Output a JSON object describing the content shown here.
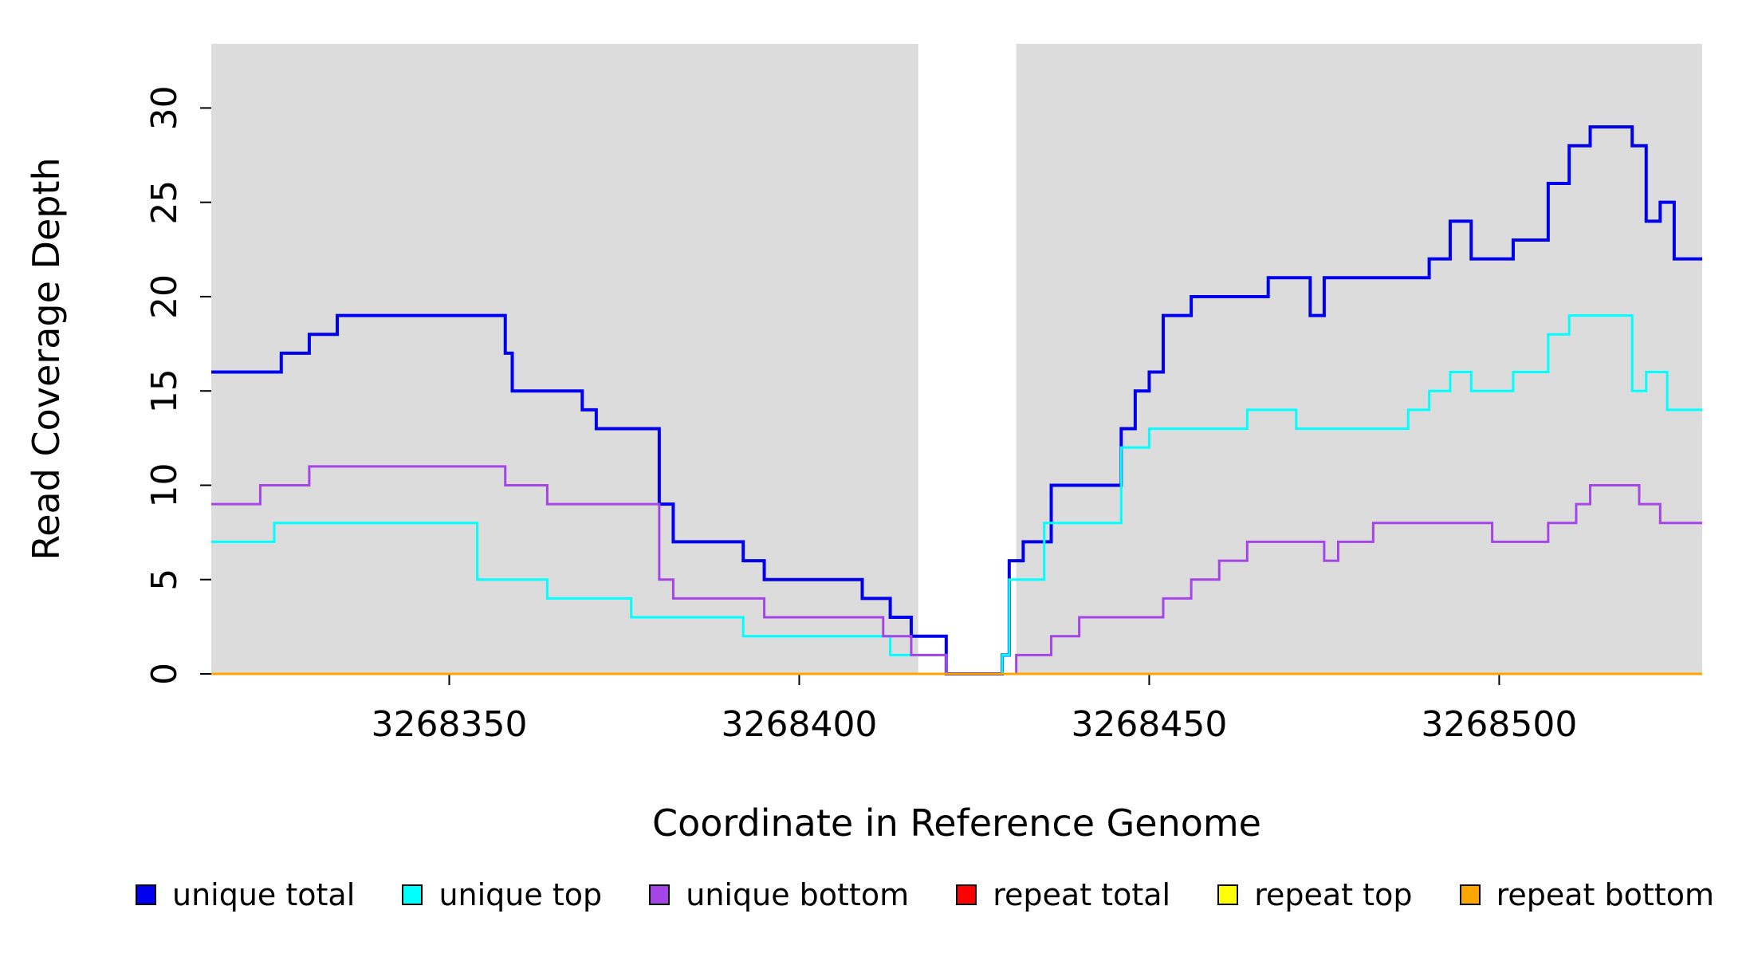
{
  "chart_data": {
    "type": "line",
    "subtype": "step-after-coverage",
    "title": "",
    "xlabel": "Coordinate in Reference Genome",
    "ylabel": "Read Coverage Depth",
    "xlim": [
      3268316,
      3268529
    ],
    "ylim": [
      0,
      33.4
    ],
    "x_ticks": [
      3268350,
      3268400,
      3268450,
      3268500
    ],
    "y_ticks": [
      0,
      5,
      10,
      15,
      20,
      25,
      30
    ],
    "grid": false,
    "legend_position": "bottom",
    "panel_background": "#ffffff",
    "shaded_regions": [
      {
        "x0": 3268316,
        "x1": 3268417,
        "color": "#DCDCDC"
      },
      {
        "x0": 3268431,
        "x1": 3268529,
        "color": "#DCDCDC"
      }
    ],
    "series": [
      {
        "name": "unique total",
        "color": "#0000EE",
        "width": 4,
        "points": [
          [
            3268316,
            16
          ],
          [
            3268326,
            17
          ],
          [
            3268330,
            18
          ],
          [
            3268334,
            19
          ],
          [
            3268358,
            17
          ],
          [
            3268359,
            15
          ],
          [
            3268369,
            14
          ],
          [
            3268371,
            13
          ],
          [
            3268380,
            9
          ],
          [
            3268382,
            7
          ],
          [
            3268392,
            6
          ],
          [
            3268395,
            5
          ],
          [
            3268409,
            4
          ],
          [
            3268413,
            3
          ],
          [
            3268416,
            2
          ],
          [
            3268421,
            0
          ],
          [
            3268429,
            1
          ],
          [
            3268430,
            6
          ],
          [
            3268432,
            7
          ],
          [
            3268436,
            10
          ],
          [
            3268446,
            13
          ],
          [
            3268448,
            15
          ],
          [
            3268450,
            16
          ],
          [
            3268452,
            19
          ],
          [
            3268456,
            20
          ],
          [
            3268467,
            21
          ],
          [
            3268473,
            19
          ],
          [
            3268475,
            21
          ],
          [
            3268490,
            22
          ],
          [
            3268493,
            24
          ],
          [
            3268496,
            22
          ],
          [
            3268502,
            23
          ],
          [
            3268507,
            26
          ],
          [
            3268510,
            28
          ],
          [
            3268513,
            29
          ],
          [
            3268519,
            28
          ],
          [
            3268521,
            24
          ],
          [
            3268523,
            25
          ],
          [
            3268525,
            22
          ],
          [
            3268529,
            22
          ]
        ]
      },
      {
        "name": "unique top",
        "color": "#00FFFF",
        "width": 3,
        "points": [
          [
            3268316,
            7
          ],
          [
            3268325,
            8
          ],
          [
            3268354,
            5
          ],
          [
            3268364,
            4
          ],
          [
            3268376,
            3
          ],
          [
            3268392,
            2
          ],
          [
            3268413,
            1
          ],
          [
            3268421,
            0
          ],
          [
            3268429,
            1
          ],
          [
            3268430,
            5
          ],
          [
            3268435,
            8
          ],
          [
            3268446,
            12
          ],
          [
            3268450,
            13
          ],
          [
            3268464,
            14
          ],
          [
            3268471,
            13
          ],
          [
            3268487,
            14
          ],
          [
            3268490,
            15
          ],
          [
            3268493,
            16
          ],
          [
            3268496,
            15
          ],
          [
            3268502,
            16
          ],
          [
            3268507,
            18
          ],
          [
            3268510,
            19
          ],
          [
            3268519,
            15
          ],
          [
            3268521,
            16
          ],
          [
            3268524,
            14
          ],
          [
            3268529,
            14
          ]
        ]
      },
      {
        "name": "unique bottom",
        "color": "#A545E8",
        "width": 3,
        "points": [
          [
            3268316,
            9
          ],
          [
            3268323,
            10
          ],
          [
            3268330,
            11
          ],
          [
            3268358,
            10
          ],
          [
            3268364,
            9
          ],
          [
            3268380,
            5
          ],
          [
            3268382,
            4
          ],
          [
            3268395,
            3
          ],
          [
            3268412,
            2
          ],
          [
            3268416,
            1
          ],
          [
            3268421,
            0
          ],
          [
            3268431,
            1
          ],
          [
            3268436,
            2
          ],
          [
            3268440,
            3
          ],
          [
            3268452,
            4
          ],
          [
            3268456,
            5
          ],
          [
            3268460,
            6
          ],
          [
            3268464,
            7
          ],
          [
            3268475,
            6
          ],
          [
            3268477,
            7
          ],
          [
            3268482,
            8
          ],
          [
            3268499,
            7
          ],
          [
            3268507,
            8
          ],
          [
            3268511,
            9
          ],
          [
            3268513,
            10
          ],
          [
            3268520,
            9
          ],
          [
            3268523,
            8
          ],
          [
            3268529,
            8
          ]
        ]
      },
      {
        "name": "repeat total",
        "color": "#FF0000",
        "width": 3,
        "points": [
          [
            3268316,
            0
          ],
          [
            3268529,
            0
          ]
        ]
      },
      {
        "name": "repeat top",
        "color": "#FFFF00",
        "width": 3,
        "points": [
          [
            3268316,
            0
          ],
          [
            3268529,
            0
          ]
        ]
      },
      {
        "name": "repeat bottom",
        "color": "#FFA500",
        "width": 3,
        "points": [
          [
            3268316,
            0
          ],
          [
            3268529,
            0
          ]
        ]
      }
    ]
  }
}
